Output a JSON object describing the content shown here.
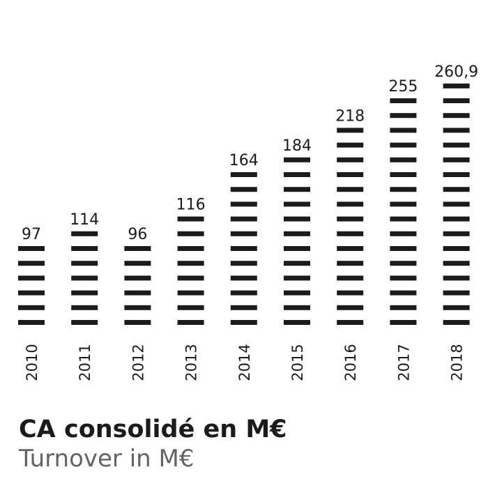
{
  "chart_data": {
    "type": "bar",
    "categories": [
      "2010",
      "2011",
      "2012",
      "2013",
      "2014",
      "2015",
      "2016",
      "2017",
      "2018"
    ],
    "values": [
      97,
      114,
      96,
      116,
      164,
      184,
      218,
      255,
      260.9
    ],
    "value_labels": [
      "97",
      "114",
      "96",
      "116",
      "164",
      "184",
      "218",
      "255",
      "260,9"
    ],
    "title": "CA consolidé en M€",
    "subtitle": "Turnover in M€",
    "grid": false,
    "ylim": [
      0,
      260.9
    ],
    "bar_color": "#1b1b1b"
  }
}
